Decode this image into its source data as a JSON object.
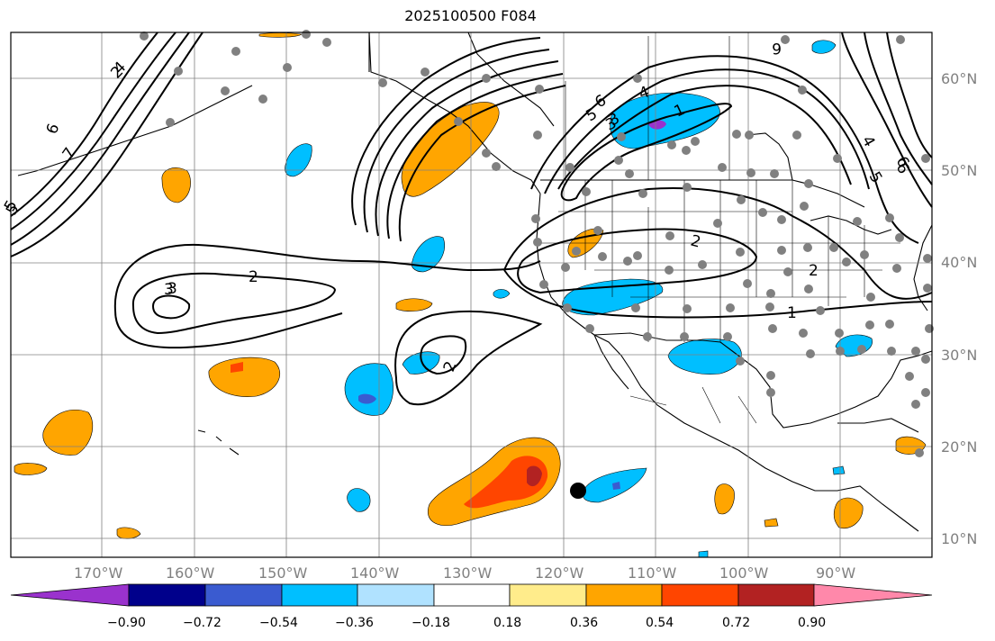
{
  "title": "2025100500 F084",
  "map": {
    "lon_labels": [
      "170°W",
      "160°W",
      "150°W",
      "140°W",
      "130°W",
      "120°W",
      "110°W",
      "100°W",
      "90°W"
    ],
    "lat_labels": [
      "60°N",
      "50°N",
      "40°N",
      "30°N",
      "20°N",
      "10°N"
    ],
    "contour_labels": [
      "6",
      "7",
      "5",
      "4",
      "6",
      "4",
      "5",
      "6",
      "5",
      "6",
      "3",
      "4",
      "3",
      "5",
      "1",
      "2",
      "3",
      "2",
      "2",
      "2",
      "1",
      "2",
      "6",
      "3"
    ]
  },
  "colorbar": {
    "tick_labels": [
      "−0.90",
      "−0.72",
      "−0.54",
      "−0.36",
      "−0.18",
      "0.18",
      "0.36",
      "0.54",
      "0.72",
      "0.90"
    ],
    "colors": [
      "#9a32cd",
      "#00008b",
      "#3a5bd0",
      "#00bfff",
      "#b0e2ff",
      "#ffffff",
      "#ffec8b",
      "#ffa500",
      "#ff4500",
      "#b22222",
      "#ff88aa"
    ]
  }
}
